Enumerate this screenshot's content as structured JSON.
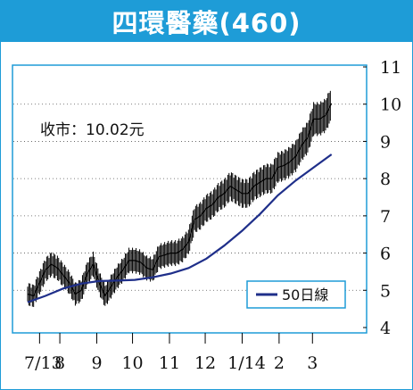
{
  "chart_data": {
    "type": "line",
    "title": "四環醫藥(460)",
    "annotation": "收市：10.02元",
    "x_tick_labels": [
      "7/13",
      "8",
      "9",
      "10",
      "11",
      "12",
      "1/14",
      "2",
      "3"
    ],
    "y_tick_labels": [
      "4",
      "5",
      "6",
      "7",
      "8",
      "9",
      "10",
      "11"
    ],
    "ylim": [
      4,
      11
    ],
    "grid": "horizontal dotted",
    "legend_position": "bottom-right",
    "series": [
      {
        "name": "",
        "style": "daily price bars",
        "x": [
          "2013-07-05",
          "2013-07-10",
          "2013-07-15",
          "2013-07-20",
          "2013-07-25",
          "2013-07-30",
          "2013-08-04",
          "2013-08-09",
          "2013-08-14",
          "2013-08-19",
          "2013-08-24",
          "2013-08-29",
          "2013-09-03",
          "2013-09-08",
          "2013-09-13",
          "2013-09-18",
          "2013-09-23",
          "2013-09-28",
          "2013-10-03",
          "2013-10-08",
          "2013-10-13",
          "2013-10-18",
          "2013-10-23",
          "2013-10-28",
          "2013-11-02",
          "2013-11-07",
          "2013-11-12",
          "2013-11-17",
          "2013-11-22",
          "2013-11-27",
          "2013-12-02",
          "2013-12-07",
          "2013-12-12",
          "2013-12-17",
          "2013-12-22",
          "2013-12-27",
          "2014-01-01",
          "2014-01-06",
          "2014-01-11",
          "2014-01-16",
          "2014-01-21",
          "2014-01-26",
          "2014-01-31",
          "2014-02-05",
          "2014-02-10",
          "2014-02-15",
          "2014-02-20",
          "2014-02-25",
          "2014-03-02",
          "2014-03-07",
          "2014-03-12",
          "2014-03-17"
        ],
        "values": [
          4.9,
          4.85,
          5.2,
          5.55,
          5.7,
          5.6,
          5.4,
          5.2,
          4.9,
          5.0,
          5.45,
          5.7,
          5.2,
          4.85,
          5.1,
          5.35,
          5.55,
          5.8,
          5.8,
          5.75,
          5.6,
          5.55,
          5.9,
          5.95,
          6.0,
          6.0,
          6.1,
          6.3,
          6.9,
          7.0,
          7.2,
          7.3,
          7.5,
          7.6,
          7.8,
          7.7,
          7.6,
          7.6,
          7.8,
          7.9,
          8.0,
          8.0,
          8.3,
          8.35,
          8.45,
          8.6,
          8.9,
          9.1,
          9.6,
          9.6,
          9.7,
          10.02
        ],
        "color": "#000000"
      },
      {
        "name": "50日線",
        "style": "line",
        "x": [
          "2013-07-05",
          "2013-07-20",
          "2013-08-04",
          "2013-08-19",
          "2013-09-03",
          "2013-09-18",
          "2013-10-03",
          "2013-10-18",
          "2013-11-02",
          "2013-11-17",
          "2013-12-02",
          "2013-12-17",
          "2014-01-01",
          "2014-01-16",
          "2014-01-31",
          "2014-02-15",
          "2014-03-02",
          "2014-03-17"
        ],
        "values": [
          4.68,
          4.85,
          5.05,
          5.18,
          5.25,
          5.26,
          5.28,
          5.35,
          5.45,
          5.6,
          5.85,
          6.2,
          6.6,
          7.05,
          7.55,
          7.95,
          8.3,
          8.65
        ],
        "color": "#1f2f8a"
      }
    ]
  }
}
